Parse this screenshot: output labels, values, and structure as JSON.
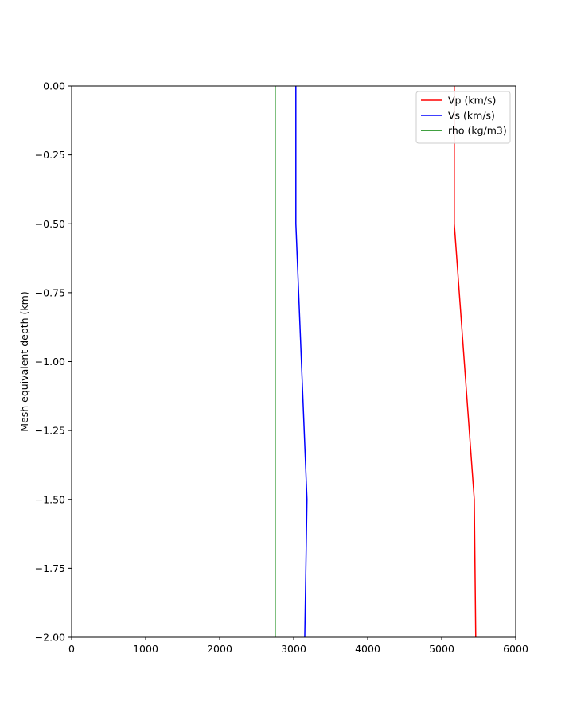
{
  "chart_data": {
    "type": "line",
    "title": "",
    "xlabel": "",
    "ylabel": "Mesh equivalent depth (km)",
    "xlim": [
      0,
      6000
    ],
    "ylim": [
      -2.0,
      0.0
    ],
    "xticks": [
      0,
      1000,
      2000,
      3000,
      4000,
      5000,
      6000
    ],
    "xtick_labels": [
      "0",
      "1000",
      "2000",
      "3000",
      "4000",
      "5000",
      "6000"
    ],
    "yticks": [
      0.0,
      -0.25,
      -0.5,
      -0.75,
      -1.0,
      -1.25,
      -1.5,
      -1.75,
      -2.0
    ],
    "ytick_labels": [
      "0.00",
      "−0.25",
      "−0.50",
      "−0.75",
      "−1.00",
      "−1.25",
      "−1.50",
      "−1.75",
      "−2.00"
    ],
    "grid": false,
    "legend_position": "top-right",
    "series": [
      {
        "name": "Vp (km/s)",
        "color": "#ff0000",
        "x": [
          5170,
          5170,
          5440,
          5460
        ],
        "y": [
          0.0,
          -0.5,
          -1.5,
          -2.0
        ]
      },
      {
        "name": "Vs (km/s)",
        "color": "#0000ff",
        "x": [
          3030,
          3030,
          3180,
          3150
        ],
        "y": [
          0.0,
          -0.5,
          -1.5,
          -2.0
        ]
      },
      {
        "name": "rho (kg/m3)",
        "color": "#008000",
        "x": [
          2750,
          2750
        ],
        "y": [
          0.0,
          -2.0
        ]
      }
    ]
  }
}
